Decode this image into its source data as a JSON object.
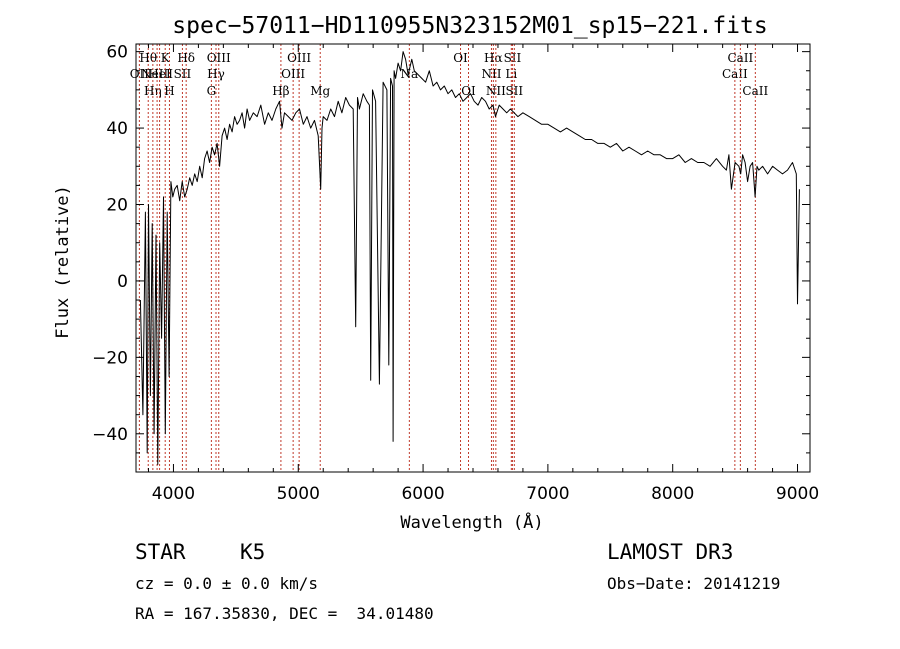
{
  "chart_data": {
    "type": "line",
    "title": "spec−57011−HD110955N323152M01_sp15−221.fits",
    "xlabel": "Wavelength (Å)",
    "ylabel": "Flux (relative)",
    "xlim": [
      3700,
      9100
    ],
    "ylim": [
      -50,
      62
    ],
    "xticks": [
      {
        "value": 4000,
        "label": "4000"
      },
      {
        "value": 5000,
        "label": "5000"
      },
      {
        "value": 6000,
        "label": "6000"
      },
      {
        "value": 7000,
        "label": "7000"
      },
      {
        "value": 8000,
        "label": "8000"
      },
      {
        "value": 9000,
        "label": "9000"
      }
    ],
    "yticks": [
      {
        "value": -40,
        "label": "−40"
      },
      {
        "value": -20,
        "label": "−20"
      },
      {
        "value": 0,
        "label": "0"
      },
      {
        "value": 20,
        "label": "20"
      },
      {
        "value": 40,
        "label": "40"
      },
      {
        "value": 60,
        "label": "60"
      }
    ],
    "series": [
      {
        "color": "#000000",
        "x": [
          3735,
          3755,
          3775,
          3790,
          3800,
          3815,
          3830,
          3845,
          3860,
          3875,
          3890,
          3905,
          3920,
          3935,
          3950,
          3965,
          3980,
          3995,
          4010,
          4030,
          4050,
          4070,
          4090,
          4110,
          4130,
          4150,
          4170,
          4190,
          4210,
          4230,
          4250,
          4270,
          4290,
          4310,
          4330,
          4350,
          4370,
          4390,
          4410,
          4430,
          4450,
          4470,
          4490,
          4510,
          4530,
          4550,
          4570,
          4590,
          4610,
          4640,
          4670,
          4700,
          4730,
          4760,
          4790,
          4820,
          4850,
          4870,
          4890,
          4920,
          4950,
          4980,
          5010,
          5040,
          5070,
          5100,
          5130,
          5160,
          5180,
          5190,
          5200,
          5230,
          5260,
          5290,
          5320,
          5350,
          5380,
          5410,
          5440,
          5460,
          5475,
          5490,
          5520,
          5550,
          5570,
          5580,
          5595,
          5620,
          5650,
          5680,
          5710,
          5725,
          5740,
          5755,
          5760,
          5768,
          5780,
          5800,
          5820,
          5840,
          5860,
          5880,
          5895,
          5910,
          5930,
          5960,
          5990,
          6020,
          6050,
          6080,
          6110,
          6140,
          6170,
          6200,
          6230,
          6260,
          6290,
          6320,
          6350,
          6380,
          6410,
          6440,
          6470,
          6500,
          6530,
          6560,
          6580,
          6610,
          6640,
          6670,
          6700,
          6730,
          6760,
          6800,
          6850,
          6900,
          6950,
          7000,
          7050,
          7100,
          7150,
          7200,
          7250,
          7300,
          7350,
          7400,
          7450,
          7500,
          7550,
          7600,
          7650,
          7700,
          7750,
          7800,
          7850,
          7900,
          7950,
          8000,
          8050,
          8100,
          8150,
          8200,
          8250,
          8300,
          8350,
          8400,
          8430,
          8450,
          8470,
          8500,
          8530,
          8545,
          8560,
          8580,
          8600,
          8620,
          8640,
          8660,
          8675,
          8690,
          8720,
          8760,
          8800,
          8840,
          8880,
          8920,
          8960,
          8990,
          9000,
          9015
        ],
        "y": [
          -5,
          -35,
          18,
          -45,
          20,
          -30,
          15,
          -40,
          12,
          -48,
          10,
          -15,
          22,
          -40,
          18,
          -25,
          26,
          22,
          24,
          25,
          21,
          26,
          22,
          24,
          27,
          25,
          28,
          26,
          30,
          27,
          32,
          34,
          31,
          35,
          33,
          36,
          30,
          38,
          40,
          37,
          41,
          39,
          43,
          41,
          42,
          44,
          40,
          45,
          42,
          44,
          43,
          46,
          41,
          44,
          42,
          45,
          47,
          40,
          44,
          43,
          42,
          44,
          45,
          41,
          43,
          40,
          42,
          38,
          24,
          40,
          43,
          42,
          45,
          43,
          47,
          44,
          48,
          46,
          45,
          -12,
          48,
          45,
          49,
          47,
          46,
          -26,
          50,
          47,
          -27,
          52,
          50,
          -22,
          53,
          51,
          -42,
          55,
          53,
          57,
          55,
          60,
          58,
          54,
          56,
          58,
          55,
          54,
          53,
          52,
          55,
          51,
          52,
          50,
          51,
          49,
          50,
          48,
          49,
          47,
          48,
          49,
          47,
          46,
          48,
          47,
          45,
          46,
          43,
          46,
          45,
          44,
          45,
          44,
          43,
          44,
          43,
          42,
          41,
          41,
          40,
          39,
          40,
          39,
          38,
          37,
          37,
          36,
          36,
          35,
          36,
          34,
          35,
          34,
          33,
          34,
          33,
          33,
          32,
          32,
          33,
          31,
          32,
          31,
          31,
          30,
          32,
          30,
          29,
          33,
          24,
          31,
          30,
          28,
          33,
          31,
          26,
          30,
          31,
          22,
          30,
          29,
          30,
          28,
          30,
          29,
          28,
          29,
          31,
          28,
          -6,
          24
        ]
      }
    ],
    "line_markers": [
      {
        "wavelength": 3727,
        "label": "OII",
        "row": 2
      },
      {
        "wavelength": 3798,
        "label": "Hθ",
        "row": 1
      },
      {
        "wavelength": 3835,
        "label": "Hη",
        "row": 3
      },
      {
        "wavelength": 3869,
        "label": "NeIII",
        "row": 2
      },
      {
        "wavelength": 3889,
        "label": "HeI",
        "row": 2
      },
      {
        "wavelength": 3934,
        "label": "K",
        "row": 1
      },
      {
        "wavelength": 3968,
        "label": "H",
        "row": 3
      },
      {
        "wavelength": 4072,
        "label": "SII",
        "row": 2
      },
      {
        "wavelength": 4102,
        "label": "Hδ",
        "row": 1
      },
      {
        "wavelength": 4304,
        "label": "G",
        "row": 3
      },
      {
        "wavelength": 4341,
        "label": "Hγ",
        "row": 2
      },
      {
        "wavelength": 4363,
        "label": "OIII",
        "row": 1
      },
      {
        "wavelength": 4861,
        "label": "Hβ",
        "row": 3
      },
      {
        "wavelength": 4959,
        "label": "OIII",
        "row": 2
      },
      {
        "wavelength": 5007,
        "label": "OIII",
        "row": 1
      },
      {
        "wavelength": 5176,
        "label": "Mg",
        "row": 3
      },
      {
        "wavelength": 5890,
        "label": "Na",
        "row": 2
      },
      {
        "wavelength": 6300,
        "label": "OI",
        "row": 1
      },
      {
        "wavelength": 6364,
        "label": "OI",
        "row": 3
      },
      {
        "wavelength": 6548,
        "label": "NII",
        "row": 2
      },
      {
        "wavelength": 6563,
        "label": "Hα",
        "row": 1
      },
      {
        "wavelength": 6583,
        "label": "NII",
        "row": 3
      },
      {
        "wavelength": 6707,
        "label": "Li",
        "row": 2
      },
      {
        "wavelength": 6716,
        "label": "SII",
        "row": 1
      },
      {
        "wavelength": 6731,
        "label": "SII",
        "row": 3
      },
      {
        "wavelength": 8498,
        "label": "CaII",
        "row": 2
      },
      {
        "wavelength": 8542,
        "label": "CaII",
        "row": 1
      },
      {
        "wavelength": 8662,
        "label": "CaII",
        "row": 3
      }
    ],
    "grid": false,
    "legend": "none"
  },
  "info": {
    "class_label": "STAR",
    "subclass": "K5",
    "survey": "LAMOST DR3",
    "cz": "cz = 0.0 ± 0.0 km/s",
    "obs_date": "Obs−Date: 20141219",
    "radec": "RA = 167.35830, DEC =  34.01480"
  }
}
